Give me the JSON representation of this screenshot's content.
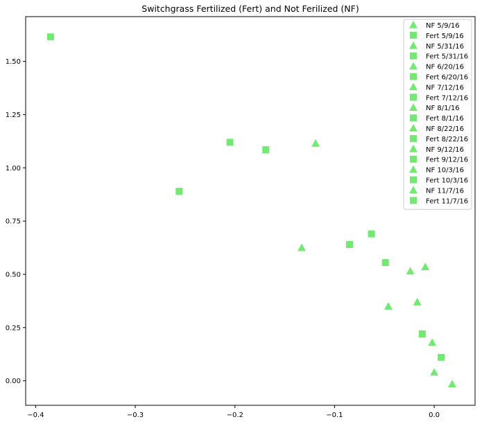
{
  "chart_data": {
    "type": "scatter",
    "title": "Switchgrass Fertilized (Fert) and Not Ferilized (NF)",
    "xlabel": "",
    "ylabel": "",
    "xlim": [
      -0.41,
      0.041
    ],
    "ylim": [
      -0.115,
      1.71
    ],
    "xticks": [
      -0.4,
      -0.3,
      -0.2,
      -0.1,
      0.0
    ],
    "xtick_labels": [
      "−0.4",
      "−0.3",
      "−0.2",
      "−0.1",
      "0.0"
    ],
    "yticks": [
      0.0,
      0.25,
      0.5,
      0.75,
      1.0,
      1.25,
      1.5
    ],
    "ytick_labels": [
      "0.00",
      "0.25",
      "0.50",
      "0.75",
      "1.00",
      "1.25",
      "1.50"
    ],
    "grid": false,
    "legend_position": "top-right",
    "series": [
      {
        "name": "NF 5/9/16",
        "marker": "triangle",
        "color": "#72ea72",
        "points": [
          [
            0.018,
            -0.015
          ]
        ]
      },
      {
        "name": "Fert 5/9/16",
        "marker": "square",
        "color": "#72ea72",
        "points": [
          [
            0.007,
            0.11
          ]
        ]
      },
      {
        "name": "NF 5/31/16",
        "marker": "triangle",
        "color": "#72ea72",
        "points": [
          [
            0.0,
            0.04
          ]
        ]
      },
      {
        "name": "Fert 5/31/16",
        "marker": "square",
        "color": "#72ea72",
        "points": [
          [
            -0.012,
            0.22
          ]
        ]
      },
      {
        "name": "NF 6/20/16",
        "marker": "triangle",
        "color": "#72ea72",
        "points": [
          [
            -0.002,
            0.18
          ]
        ]
      },
      {
        "name": "Fert 6/20/16",
        "marker": "square",
        "color": "#72ea72",
        "points": [
          [
            -0.049,
            0.555
          ]
        ]
      },
      {
        "name": "NF 7/12/16",
        "marker": "triangle",
        "color": "#72ea72",
        "points": [
          [
            -0.017,
            0.37
          ]
        ]
      },
      {
        "name": "Fert 7/12/16",
        "marker": "square",
        "color": "#72ea72",
        "points": [
          [
            -0.085,
            0.64
          ]
        ]
      },
      {
        "name": "NF 8/1/16",
        "marker": "triangle",
        "color": "#72ea72",
        "points": [
          [
            -0.046,
            0.35
          ]
        ]
      },
      {
        "name": "Fert 8/1/16",
        "marker": "square",
        "color": "#72ea72",
        "points": [
          [
            -0.063,
            0.69
          ]
        ]
      },
      {
        "name": "NF 8/22/16",
        "marker": "triangle",
        "color": "#72ea72",
        "points": [
          [
            -0.024,
            0.515
          ]
        ]
      },
      {
        "name": "Fert 8/22/16",
        "marker": "square",
        "color": "#72ea72",
        "points": [
          [
            -0.169,
            1.085
          ]
        ]
      },
      {
        "name": "NF 9/12/16",
        "marker": "triangle",
        "color": "#72ea72",
        "points": [
          [
            -0.009,
            0.535
          ]
        ]
      },
      {
        "name": "Fert 9/12/16",
        "marker": "square",
        "color": "#72ea72",
        "points": [
          [
            -0.205,
            1.12
          ]
        ]
      },
      {
        "name": "NF 10/3/16",
        "marker": "triangle",
        "color": "#72ea72",
        "points": [
          [
            -0.133,
            0.625
          ]
        ]
      },
      {
        "name": "Fert 10/3/16",
        "marker": "square",
        "color": "#72ea72",
        "points": [
          [
            -0.256,
            0.89
          ]
        ]
      },
      {
        "name": "NF 11/7/16",
        "marker": "triangle",
        "color": "#72ea72",
        "points": [
          [
            -0.119,
            1.115
          ]
        ]
      },
      {
        "name": "Fert 11/7/16",
        "marker": "square",
        "color": "#72ea72",
        "points": [
          [
            -0.385,
            1.615
          ]
        ]
      }
    ]
  }
}
